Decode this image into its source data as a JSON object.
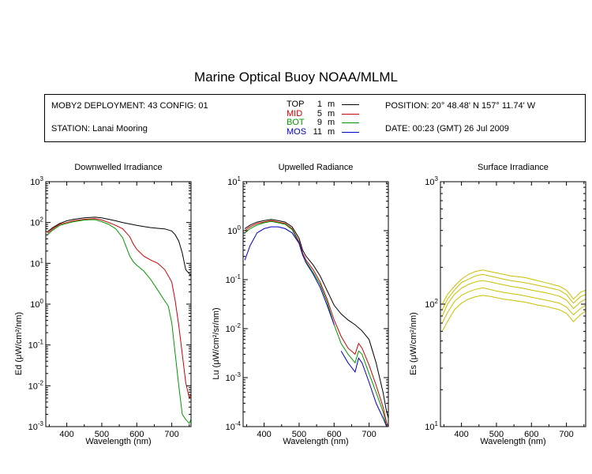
{
  "title": "Marine Optical Buoy NOAA/MLML",
  "info": {
    "deployment": "MOBY2 DEPLOYMENT: 43 CONFIG: 01",
    "station": "STATION: Lanai Mooring",
    "position": "POSITION: 20° 48.48' N   157° 11.74' W",
    "date": "DATE: 00:23 (GMT) 26 Jul 2009"
  },
  "legend": [
    {
      "label": "TOP",
      "depth": "1",
      "unit": "m",
      "color": "#000000"
    },
    {
      "label": "MID",
      "depth": "5",
      "unit": "m",
      "color": "#cc0000"
    },
    {
      "label": "BOT",
      "depth": "9",
      "unit": "m",
      "color": "#009900"
    },
    {
      "label": "MOS",
      "depth": "11",
      "unit": "m",
      "color": "#0000cc"
    }
  ],
  "chart_data": [
    {
      "type": "line",
      "title": "Downwelled Irradiance",
      "xlabel": "Wavelength (nm)",
      "ylabel": "Ed  (μW/cm²/nm)",
      "xlim": [
        340,
        755
      ],
      "ylim": [
        0.001,
        1000
      ],
      "yscale": "log",
      "xticks": [
        400,
        500,
        600,
        700
      ],
      "yticks": [
        {
          "value": 1000,
          "mantissa": "10",
          "exp": "3"
        },
        {
          "value": 100,
          "mantissa": "10",
          "exp": "2"
        },
        {
          "value": 10,
          "mantissa": "10",
          "exp": "1"
        },
        {
          "value": 1,
          "mantissa": "10",
          "exp": "0"
        },
        {
          "value": 0.1,
          "mantissa": "10",
          "exp": "-1"
        },
        {
          "value": 0.01,
          "mantissa": "10",
          "exp": "-2"
        },
        {
          "value": 0.001,
          "mantissa": "10",
          "exp": "-3"
        }
      ],
      "series": [
        {
          "name": "TOP",
          "color": "#000000",
          "x": [
            345,
            360,
            380,
            400,
            420,
            450,
            480,
            500,
            520,
            540,
            560,
            580,
            600,
            620,
            640,
            660,
            680,
            700,
            710,
            720,
            730,
            740,
            755
          ],
          "y": [
            60,
            75,
            95,
            110,
            120,
            130,
            135,
            130,
            120,
            110,
            100,
            92,
            85,
            80,
            75,
            72,
            70,
            62,
            50,
            35,
            18,
            7,
            5
          ]
        },
        {
          "name": "MID",
          "color": "#cc0000",
          "x": [
            345,
            360,
            380,
            400,
            420,
            450,
            480,
            500,
            520,
            540,
            560,
            580,
            590,
            600,
            620,
            640,
            660,
            680,
            700,
            710,
            720,
            730,
            740,
            750,
            755
          ],
          "y": [
            55,
            70,
            90,
            100,
            110,
            120,
            125,
            115,
            100,
            85,
            70,
            45,
            30,
            22,
            15,
            12,
            10,
            7,
            3.5,
            1.2,
            0.3,
            0.06,
            0.012,
            0.005,
            0.006
          ]
        },
        {
          "name": "BOT",
          "color": "#009900",
          "x": [
            345,
            360,
            380,
            400,
            420,
            450,
            480,
            500,
            520,
            540,
            560,
            570,
            580,
            590,
            600,
            620,
            640,
            660,
            680,
            690,
            700,
            710,
            720,
            730,
            740,
            750,
            755
          ],
          "y": [
            50,
            65,
            85,
            95,
            105,
            115,
            118,
            105,
            90,
            70,
            42,
            25,
            15,
            11,
            9,
            6.5,
            4,
            2.2,
            1.2,
            0.9,
            0.35,
            0.06,
            0.01,
            0.002,
            0.0015,
            0.0012,
            0.0015
          ]
        }
      ]
    },
    {
      "type": "line",
      "title": "Upwelled Radiance",
      "xlabel": "Wavelength (nm)",
      "ylabel": "Lu  (μW/cm²/sr/nm)",
      "xlim": [
        340,
        755
      ],
      "ylim": [
        0.0001,
        10
      ],
      "yscale": "log",
      "xticks": [
        400,
        500,
        600,
        700
      ],
      "yticks": [
        {
          "value": 10,
          "mantissa": "10",
          "exp": "1"
        },
        {
          "value": 1,
          "mantissa": "10",
          "exp": "0"
        },
        {
          "value": 0.1,
          "mantissa": "10",
          "exp": "-1"
        },
        {
          "value": 0.01,
          "mantissa": "10",
          "exp": "-2"
        },
        {
          "value": 0.001,
          "mantissa": "10",
          "exp": "-3"
        },
        {
          "value": 0.0001,
          "mantissa": "10",
          "exp": "-4"
        }
      ],
      "series": [
        {
          "name": "TOP",
          "color": "#000000",
          "x": [
            345,
            360,
            380,
            400,
            420,
            440,
            460,
            480,
            500,
            510,
            520,
            540,
            560,
            580,
            600,
            620,
            640,
            660,
            680,
            700,
            720,
            730,
            740,
            750,
            755
          ],
          "y": [
            1.1,
            1.3,
            1.5,
            1.6,
            1.7,
            1.6,
            1.5,
            1.2,
            0.7,
            0.4,
            0.3,
            0.2,
            0.12,
            0.06,
            0.03,
            0.02,
            0.015,
            0.012,
            0.009,
            0.006,
            0.002,
            0.001,
            0.0005,
            0.0002,
            0.00015
          ]
        },
        {
          "name": "MID",
          "color": "#cc0000",
          "x": [
            345,
            360,
            380,
            400,
            420,
            440,
            460,
            480,
            500,
            510,
            520,
            540,
            560,
            580,
            600,
            620,
            640,
            660,
            670,
            680,
            700,
            720,
            740,
            750,
            755
          ],
          "y": [
            1.0,
            1.2,
            1.4,
            1.5,
            1.6,
            1.5,
            1.4,
            1.1,
            0.6,
            0.35,
            0.25,
            0.16,
            0.09,
            0.04,
            0.015,
            0.007,
            0.004,
            0.003,
            0.005,
            0.004,
            0.0018,
            0.0007,
            0.00025,
            0.00012,
            0.0001
          ]
        },
        {
          "name": "BOT",
          "color": "#009900",
          "x": [
            345,
            360,
            380,
            400,
            420,
            440,
            460,
            480,
            500,
            510,
            520,
            540,
            560,
            580,
            600,
            620,
            640,
            660,
            670,
            680,
            700,
            720,
            740,
            750,
            755
          ],
          "y": [
            0.9,
            1.1,
            1.3,
            1.45,
            1.55,
            1.45,
            1.35,
            1.05,
            0.55,
            0.32,
            0.23,
            0.14,
            0.08,
            0.035,
            0.012,
            0.005,
            0.003,
            0.002,
            0.0035,
            0.003,
            0.0012,
            0.0005,
            0.0002,
            0.0001,
            0.0001
          ]
        },
        {
          "name": "MOS",
          "color": "#0000cc",
          "x": [
            345,
            360,
            380,
            400,
            420,
            440,
            460,
            480,
            500,
            510,
            520,
            540,
            560,
            580,
            600
          ],
          "y": [
            0.25,
            0.5,
            0.9,
            1.1,
            1.2,
            1.2,
            1.1,
            0.9,
            0.55,
            0.32,
            0.22,
            0.13,
            0.07,
            0.03,
            0.012
          ]
        },
        {
          "name": "MOS",
          "color": "#0000cc",
          "x": [
            620,
            640,
            660,
            670,
            680,
            700,
            720,
            740,
            750
          ],
          "y": [
            0.0035,
            0.002,
            0.0013,
            0.0025,
            0.002,
            0.0008,
            0.0003,
            0.00015,
            0.0001
          ]
        }
      ]
    },
    {
      "type": "line",
      "title": "Surface Irradiance",
      "xlabel": "Wavelength (nm)",
      "ylabel": "Es  (μW/cm²/nm)",
      "xlim": [
        340,
        755
      ],
      "ylim": [
        10,
        1000
      ],
      "yscale": "log",
      "xticks": [
        400,
        500,
        600,
        700
      ],
      "yticks": [
        {
          "value": 1000,
          "mantissa": "10",
          "exp": "3"
        },
        {
          "value": 100,
          "mantissa": "10",
          "exp": "2"
        },
        {
          "value": 10,
          "mantissa": "10",
          "exp": "1"
        }
      ],
      "series": [
        {
          "name": "",
          "color": "#c8c000",
          "x": [
            345,
            360,
            380,
            400,
            420,
            440,
            460,
            480,
            500,
            520,
            540,
            560,
            580,
            600,
            620,
            640,
            660,
            680,
            700,
            710,
            720,
            740,
            755
          ],
          "y": [
            100,
            120,
            140,
            160,
            175,
            185,
            190,
            185,
            180,
            175,
            170,
            168,
            165,
            160,
            155,
            150,
            145,
            140,
            130,
            120,
            110,
            125,
            130
          ]
        },
        {
          "name": "",
          "color": "#c8c000",
          "x": [
            345,
            360,
            380,
            400,
            420,
            440,
            460,
            480,
            500,
            520,
            540,
            560,
            580,
            600,
            620,
            640,
            660,
            680,
            700,
            710,
            720,
            740,
            755
          ],
          "y": [
            90,
            110,
            130,
            150,
            160,
            170,
            175,
            170,
            165,
            160,
            156,
            153,
            150,
            146,
            142,
            138,
            134,
            130,
            120,
            110,
            102,
            115,
            120
          ]
        },
        {
          "name": "",
          "color": "#c8c000",
          "x": [
            345,
            360,
            380,
            400,
            420,
            440,
            460,
            480,
            500,
            520,
            540,
            560,
            580,
            600,
            620,
            640,
            660,
            680,
            700,
            710,
            720,
            740,
            755
          ],
          "y": [
            80,
            100,
            120,
            135,
            145,
            152,
            156,
            152,
            148,
            144,
            140,
            137,
            134,
            130,
            127,
            124,
            120,
            116,
            108,
            100,
            92,
            104,
            110
          ]
        },
        {
          "name": "",
          "color": "#c8c000",
          "x": [
            345,
            360,
            380,
            400,
            420,
            440,
            460,
            480,
            500,
            520,
            540,
            560,
            580,
            600,
            620,
            640,
            660,
            680,
            700,
            710,
            720,
            740,
            755
          ],
          "y": [
            70,
            85,
            105,
            118,
            126,
            132,
            136,
            132,
            128,
            125,
            122,
            120,
            117,
            114,
            111,
            108,
            105,
            102,
            95,
            88,
            82,
            92,
            98
          ]
        },
        {
          "name": "",
          "color": "#c8c000",
          "x": [
            345,
            360,
            380,
            400,
            420,
            440,
            460,
            480,
            500,
            520,
            540,
            560,
            580,
            600,
            620,
            640,
            660,
            680,
            700,
            710,
            720,
            740,
            755
          ],
          "y": [
            60,
            72,
            90,
            102,
            110,
            115,
            118,
            116,
            113,
            110,
            108,
            106,
            104,
            101,
            98,
            96,
            93,
            90,
            84,
            78,
            72,
            82,
            88
          ]
        }
      ]
    }
  ]
}
